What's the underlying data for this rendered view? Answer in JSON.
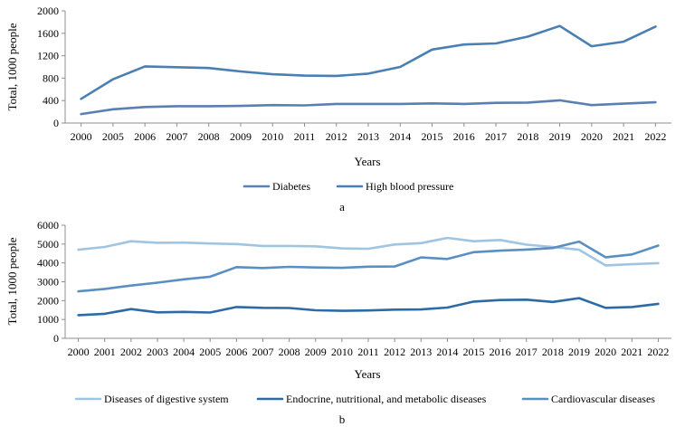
{
  "chart_data": [
    {
      "type": "line",
      "panel_label": "a",
      "xlabel": "Years",
      "ylabel": "Total, 1000 people",
      "ylim": [
        0,
        2000
      ],
      "yticks": [
        0,
        400,
        800,
        1200,
        1600,
        2000
      ],
      "categories": [
        "2000",
        "2005",
        "2006",
        "2007",
        "2008",
        "2009",
        "2010",
        "2011",
        "2012",
        "2013",
        "2014",
        "2015",
        "2016",
        "2017",
        "2018",
        "2019",
        "2020",
        "2021",
        "2022"
      ],
      "grid": false,
      "legend_position": "bottom",
      "series": [
        {
          "name": "Diabetes",
          "color": "#5b7fb0",
          "values": [
            160,
            245,
            285,
            300,
            300,
            305,
            320,
            315,
            340,
            340,
            340,
            350,
            340,
            360,
            365,
            405,
            320,
            345,
            370
          ]
        },
        {
          "name": "High blood pressure",
          "color": "#4a7fb3",
          "values": [
            430,
            780,
            1010,
            995,
            980,
            920,
            870,
            845,
            840,
            880,
            1000,
            1310,
            1400,
            1420,
            1540,
            1730,
            1370,
            1450,
            1720
          ]
        }
      ]
    },
    {
      "type": "line",
      "panel_label": "b",
      "xlabel": "Years",
      "ylabel": "Total, 1000 people",
      "ylim": [
        0,
        6000
      ],
      "yticks": [
        0,
        1000,
        2000,
        3000,
        4000,
        5000,
        6000
      ],
      "categories": [
        "2000",
        "2001",
        "2002",
        "2003",
        "2004",
        "2005",
        "2006",
        "2007",
        "2008",
        "2009",
        "2010",
        "2011",
        "2012",
        "2013",
        "2014",
        "2015",
        "2016",
        "2017",
        "2018",
        "2019",
        "2020",
        "2021",
        "2022"
      ],
      "grid": false,
      "legend_position": "bottom",
      "series": [
        {
          "name": "Diseases of digestive system",
          "color": "#9fc5e3",
          "values": [
            4700,
            4850,
            5150,
            5070,
            5080,
            5030,
            5000,
            4900,
            4900,
            4880,
            4770,
            4750,
            4980,
            5050,
            5330,
            5150,
            5220,
            4970,
            4850,
            4700,
            3870,
            3930,
            3990
          ]
        },
        {
          "name": "Endocrine, nutritional, and metabolic diseases",
          "color": "#2e6aa3",
          "values": [
            1230,
            1300,
            1550,
            1380,
            1400,
            1370,
            1660,
            1620,
            1610,
            1490,
            1460,
            1480,
            1520,
            1530,
            1630,
            1950,
            2030,
            2050,
            1930,
            2130,
            1620,
            1660,
            1830
          ]
        },
        {
          "name": "Cardiovascular diseases",
          "color": "#5b8fc2",
          "values": [
            2490,
            2620,
            2800,
            2950,
            3130,
            3270,
            3780,
            3730,
            3790,
            3760,
            3740,
            3800,
            3810,
            4290,
            4210,
            4570,
            4650,
            4710,
            4790,
            5130,
            4300,
            4450,
            4920
          ]
        }
      ]
    }
  ]
}
